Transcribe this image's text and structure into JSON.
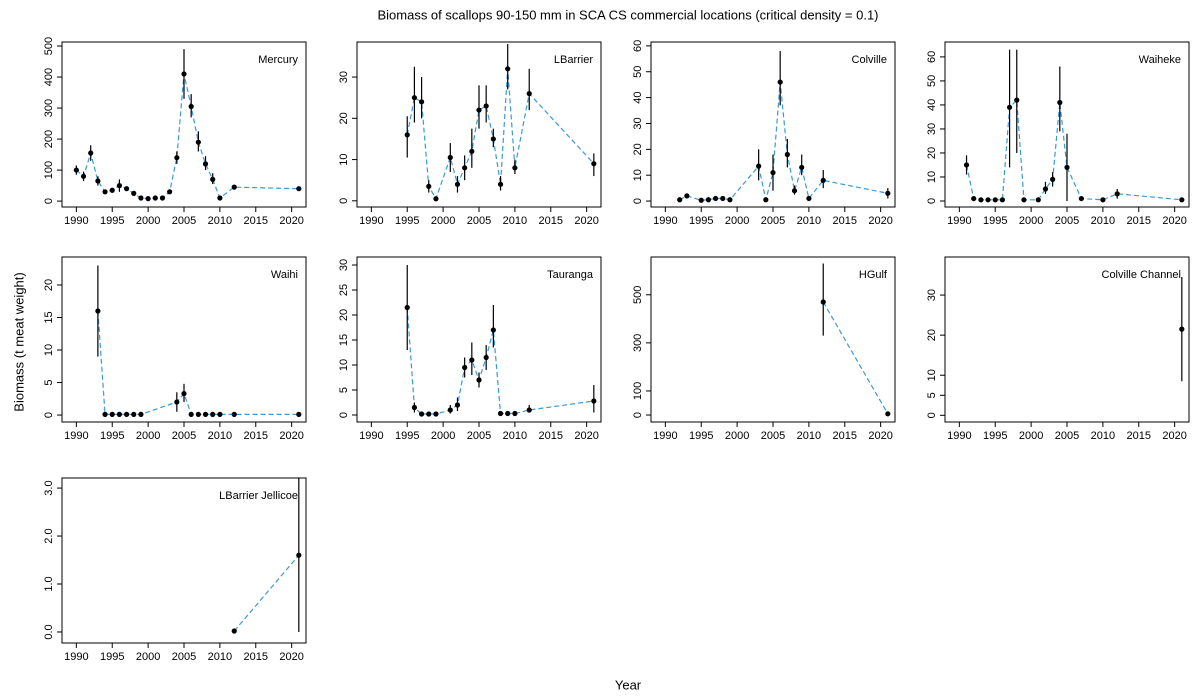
{
  "title": "Biomass of scallops 90-150 mm in SCA CS commercial locations (critical density = 0.1)",
  "xlabel": "Year",
  "ylabel": "Biomass (t meat weight)",
  "chart_data": [
    {
      "type": "line",
      "title": "Mercury",
      "xlim": [
        1988,
        2022
      ],
      "xticks": [
        1990,
        1995,
        2000,
        2005,
        2010,
        2015,
        2020
      ],
      "ylim": [
        -19,
        513
      ],
      "yticks": [
        0,
        100,
        200,
        300,
        400,
        500
      ],
      "x": [
        1990,
        1991,
        1992,
        1993,
        1994,
        1995,
        1996,
        1997,
        1998,
        1999,
        2000,
        2001,
        2002,
        2003,
        2004,
        2005,
        2006,
        2007,
        2008,
        2009,
        2010,
        2012,
        2021
      ],
      "series": [
        {
          "color": "#3a9ad9",
          "values": [
            100,
            80,
            155,
            65,
            30,
            35,
            50,
            40,
            25,
            10,
            8,
            10,
            10,
            30,
            140,
            410,
            305,
            190,
            120,
            70,
            10,
            45,
            40
          ],
          "lower": [
            85,
            65,
            130,
            50,
            null,
            null,
            30,
            null,
            null,
            null,
            null,
            null,
            null,
            null,
            120,
            330,
            270,
            160,
            100,
            55,
            null,
            null,
            null
          ],
          "upper": [
            115,
            95,
            180,
            80,
            null,
            null,
            70,
            null,
            null,
            null,
            null,
            null,
            null,
            null,
            160,
            490,
            345,
            225,
            145,
            90,
            null,
            null,
            null
          ]
        }
      ]
    },
    {
      "type": "line",
      "title": "LBarrier",
      "xlim": [
        1988,
        2022
      ],
      "xticks": [
        1990,
        1995,
        2000,
        2005,
        2010,
        2015,
        2020
      ],
      "ylim": [
        -1.5,
        38.5
      ],
      "yticks": [
        0,
        10,
        20,
        30
      ],
      "x": [
        1995,
        1996,
        1997,
        1998,
        1999,
        2001,
        2002,
        2003,
        2004,
        2005,
        2006,
        2007,
        2008,
        2009,
        2010,
        2012,
        2021
      ],
      "series": [
        {
          "color": "#3a9ad9",
          "values": [
            16,
            25,
            24,
            3.5,
            0.5,
            10.5,
            4,
            8,
            12,
            22,
            23,
            15,
            4,
            32,
            8,
            26,
            9
          ],
          "lower": [
            10.5,
            19,
            20,
            2,
            null,
            7,
            2,
            5,
            8,
            17.5,
            19,
            13,
            2.5,
            27,
            6.5,
            22,
            6
          ],
          "upper": [
            20.5,
            32.5,
            30,
            5,
            null,
            14,
            6,
            11,
            17.5,
            28,
            28,
            17.5,
            6,
            38,
            10,
            32,
            11.5
          ]
        }
      ]
    },
    {
      "type": "line",
      "title": "Colville",
      "xlim": [
        1988,
        2022
      ],
      "xticks": [
        1990,
        1995,
        2000,
        2005,
        2010,
        2015,
        2020
      ],
      "ylim": [
        -2.3,
        61.5
      ],
      "yticks": [
        0,
        10,
        20,
        30,
        40,
        50,
        60
      ],
      "x": [
        1992,
        1993,
        1995,
        1996,
        1997,
        1998,
        1999,
        2003,
        2004,
        2005,
        2006,
        2007,
        2008,
        2009,
        2010,
        2012,
        2021
      ],
      "series": [
        {
          "color": "#3a9ad9",
          "values": [
            0.5,
            2,
            0.3,
            0.5,
            1,
            1,
            0.5,
            13.5,
            0.5,
            11,
            46,
            18,
            4,
            13,
            1,
            8,
            3
          ],
          "lower": [
            null,
            null,
            null,
            null,
            null,
            null,
            null,
            8,
            null,
            4,
            37,
            13,
            2.5,
            10,
            null,
            5,
            1
          ],
          "upper": [
            null,
            null,
            null,
            null,
            null,
            null,
            null,
            20,
            null,
            18,
            58,
            24,
            6,
            18,
            null,
            12,
            5
          ]
        }
      ]
    },
    {
      "type": "line",
      "title": "Waiheke",
      "xlim": [
        1988,
        2022
      ],
      "xticks": [
        1990,
        1995,
        2000,
        2005,
        2010,
        2015,
        2020
      ],
      "ylim": [
        -2.5,
        66.2
      ],
      "yticks": [
        0,
        10,
        20,
        30,
        40,
        50,
        60
      ],
      "x": [
        1991,
        1992,
        1993,
        1994,
        1995,
        1996,
        1997,
        1998,
        1999,
        2001,
        2002,
        2003,
        2004,
        2005,
        2007,
        2010,
        2012,
        2021
      ],
      "series": [
        {
          "color": "#3a9ad9",
          "values": [
            15,
            1,
            0.5,
            0.5,
            0.5,
            0.5,
            39,
            42,
            0.5,
            0.5,
            5,
            9,
            41,
            14,
            1,
            0.5,
            3,
            0.5
          ],
          "lower": [
            11,
            null,
            null,
            null,
            null,
            null,
            14,
            20,
            null,
            null,
            3,
            6,
            29,
            0,
            null,
            null,
            1,
            null
          ],
          "upper": [
            19,
            null,
            null,
            null,
            null,
            null,
            63,
            63,
            null,
            null,
            8,
            12,
            56,
            28,
            null,
            null,
            5,
            null
          ]
        }
      ]
    },
    {
      "type": "line",
      "title": "Waihi",
      "xlim": [
        1988,
        2022
      ],
      "xticks": [
        1990,
        1995,
        2000,
        2005,
        2010,
        2015,
        2020
      ],
      "ylim": [
        -1.07,
        24.3
      ],
      "yticks": [
        0,
        5,
        10,
        15,
        20
      ],
      "x": [
        1993,
        1994,
        1995,
        1996,
        1997,
        1998,
        1999,
        2004,
        2005,
        2006,
        2007,
        2008,
        2009,
        2010,
        2012,
        2021
      ],
      "series": [
        {
          "color": "#3a9ad9",
          "values": [
            16,
            0.1,
            0.1,
            0.1,
            0.1,
            0.1,
            0.1,
            2,
            3.3,
            0.1,
            0.1,
            0.1,
            0.1,
            0.1,
            0.1,
            0.1
          ],
          "lower": [
            9,
            null,
            null,
            null,
            null,
            null,
            null,
            0.5,
            2,
            null,
            null,
            null,
            null,
            null,
            null,
            null
          ],
          "upper": [
            23,
            null,
            null,
            null,
            null,
            null,
            null,
            3.5,
            4.8,
            null,
            null,
            null,
            null,
            null,
            null,
            null
          ]
        }
      ]
    },
    {
      "type": "line",
      "title": "Tauranga",
      "xlim": [
        1988,
        2022
      ],
      "xticks": [
        1990,
        1995,
        2000,
        2005,
        2010,
        2015,
        2020
      ],
      "ylim": [
        -1.4,
        31.6
      ],
      "yticks": [
        0,
        5,
        10,
        15,
        20,
        25,
        30
      ],
      "x": [
        1995,
        1996,
        1997,
        1998,
        1999,
        2001,
        2002,
        2003,
        2004,
        2005,
        2006,
        2007,
        2008,
        2009,
        2010,
        2012,
        2021
      ],
      "series": [
        {
          "color": "#3a9ad9",
          "values": [
            21.5,
            1.5,
            0.2,
            0.2,
            0.2,
            1,
            2,
            9.5,
            11,
            7,
            11.5,
            17,
            0.3,
            0.3,
            0.3,
            1,
            2.8
          ],
          "lower": [
            13,
            0.5,
            null,
            null,
            null,
            0.3,
            0.8,
            7.5,
            8,
            5.5,
            9,
            13.5,
            null,
            null,
            null,
            0.5,
            0.5
          ],
          "upper": [
            30,
            2.5,
            null,
            null,
            null,
            2,
            3.5,
            11.5,
            14.5,
            8.5,
            14,
            22,
            null,
            null,
            null,
            2,
            6
          ]
        }
      ]
    },
    {
      "type": "line",
      "title": "HGulf",
      "xlim": [
        1988,
        2022
      ],
      "xticks": [
        1990,
        1995,
        2000,
        2005,
        2010,
        2015,
        2020
      ],
      "ylim": [
        -29,
        657
      ],
      "yticks": [
        0,
        100,
        300,
        500
      ],
      "x": [
        2012,
        2021
      ],
      "series": [
        {
          "color": "#3a9ad9",
          "values": [
            470,
            5
          ],
          "lower": [
            330,
            null
          ],
          "upper": [
            630,
            null
          ]
        }
      ]
    },
    {
      "type": "line",
      "title": "Colville Channel",
      "xlim": [
        1988,
        2022
      ],
      "xticks": [
        1990,
        1995,
        2000,
        2005,
        2010,
        2015,
        2020
      ],
      "ylim": [
        -1.67,
        39.5
      ],
      "yticks": [
        0,
        5,
        10,
        20,
        30
      ],
      "x": [
        2021
      ],
      "series": [
        {
          "color": "#3a9ad9",
          "values": [
            21.5
          ],
          "lower": [
            8.5
          ],
          "upper": [
            34.5
          ]
        }
      ]
    },
    {
      "type": "line",
      "title": "LBarrier Jellicoe",
      "xlim": [
        1988,
        2022
      ],
      "xticks": [
        1990,
        1995,
        2000,
        2005,
        2010,
        2015,
        2020
      ],
      "ylim": [
        -0.23,
        3.21
      ],
      "yticks": [
        {
          "value": 0,
          "label": "0.0"
        },
        {
          "value": 1,
          "label": "1.0"
        },
        {
          "value": 2,
          "label": "2.0"
        },
        {
          "value": 3,
          "label": "3.0"
        }
      ],
      "x": [
        2012,
        2021
      ],
      "series": [
        {
          "color": "#3a9ad9",
          "values": [
            0.02,
            1.6
          ],
          "lower": [
            null,
            0
          ],
          "upper": [
            null,
            3.2
          ]
        }
      ]
    }
  ]
}
